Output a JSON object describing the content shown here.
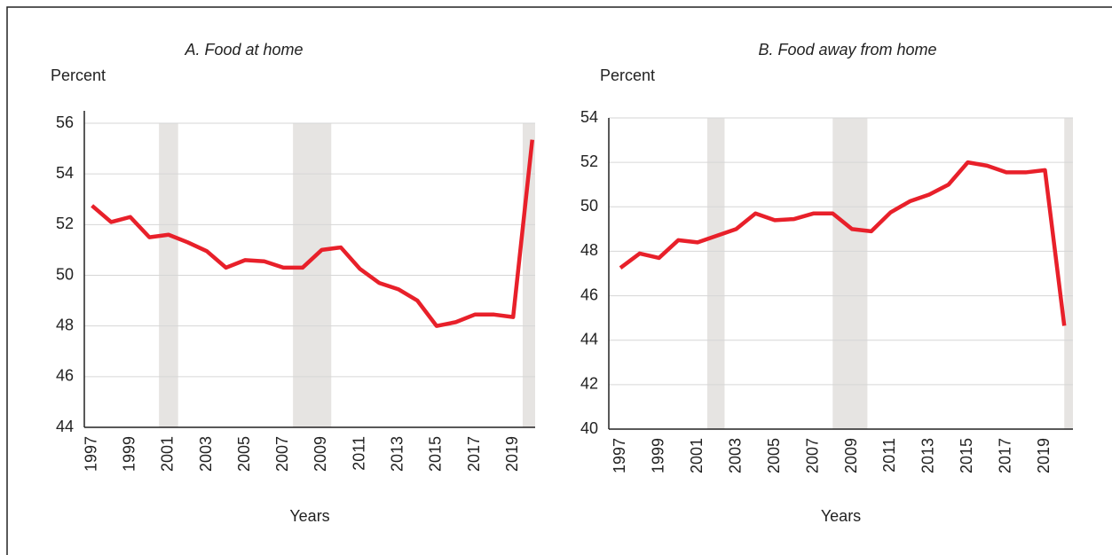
{
  "chart_data": [
    {
      "type": "line",
      "title": "A.   Food at home",
      "y_label": "Percent",
      "x_label": "Years",
      "x": [
        1997,
        1998,
        1999,
        2000,
        2001,
        2002,
        2003,
        2004,
        2005,
        2006,
        2007,
        2008,
        2009,
        2010,
        2011,
        2012,
        2013,
        2014,
        2015,
        2016,
        2017,
        2018,
        2019,
        2020
      ],
      "values": [
        52.75,
        52.1,
        52.3,
        51.5,
        51.6,
        51.3,
        50.95,
        50.3,
        50.6,
        50.55,
        50.3,
        50.3,
        51.0,
        51.1,
        50.25,
        49.7,
        49.45,
        49.0,
        48.0,
        48.15,
        48.45,
        48.45,
        48.35,
        55.35
      ],
      "color": "#e8202a",
      "shaded": [
        [
          2000.5,
          2001.5
        ],
        [
          2007.5,
          2009.5
        ],
        [
          2019.5,
          2020.15
        ]
      ],
      "shade_color": "#e6e4e2",
      "xlim": [
        1996.6,
        2020.15
      ],
      "xticks": [
        1997,
        1999,
        2001,
        2003,
        2005,
        2007,
        2009,
        2011,
        2013,
        2015,
        2017,
        2019
      ],
      "ylim": [
        44,
        56
      ],
      "yticks": [
        44,
        46,
        48,
        50,
        52,
        54,
        56
      ],
      "grid": true
    },
    {
      "type": "line",
      "title": "B.   Food away from home",
      "y_label": "Percent",
      "x_label": "Years",
      "x": [
        1997,
        1998,
        1999,
        2000,
        2001,
        2002,
        2003,
        2004,
        2005,
        2006,
        2007,
        2008,
        2009,
        2010,
        2011,
        2012,
        2013,
        2014,
        2015,
        2016,
        2017,
        2018,
        2019,
        2020
      ],
      "values": [
        47.25,
        47.9,
        47.7,
        48.5,
        48.4,
        48.7,
        49.0,
        49.7,
        49.4,
        49.45,
        49.7,
        49.7,
        49.0,
        48.9,
        49.75,
        50.25,
        50.55,
        51.0,
        52.0,
        51.85,
        51.55,
        51.55,
        51.65,
        44.65
      ],
      "color": "#e8202a",
      "shaded": [
        [
          2001.5,
          2002.4
        ],
        [
          2008,
          2009.8
        ],
        [
          2020,
          2020.45
        ]
      ],
      "shade_color": "#e6e4e2",
      "xlim": [
        1996.4,
        2020.45
      ],
      "xticks": [
        1997,
        1999,
        2001,
        2003,
        2005,
        2007,
        2009,
        2011,
        2013,
        2015,
        2017,
        2019
      ],
      "ylim": [
        40,
        54
      ],
      "yticks": [
        40,
        42,
        44,
        46,
        48,
        50,
        52,
        54
      ],
      "grid": true
    }
  ]
}
